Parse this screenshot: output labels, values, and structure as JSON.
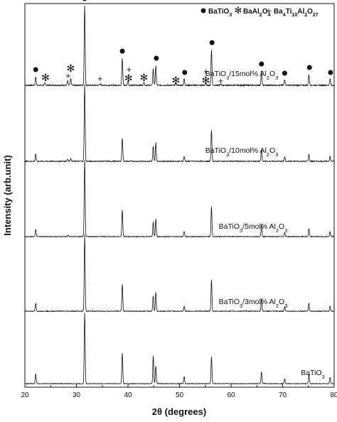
{
  "chart_data": {
    "type": "line",
    "xlabel": "2θ (degrees)",
    "ylabel": "Intensity (arb.unit)",
    "xlim": [
      20,
      80
    ],
    "xticks": [
      20,
      30,
      40,
      50,
      60,
      70,
      80
    ],
    "y_ticks_shown": false,
    "grid": false,
    "legend": {
      "placement": "top-right",
      "entries": [
        {
          "symbol": "filled-circle",
          "label": "BaTiO",
          "sub": "3"
        },
        {
          "symbol": "asterisk",
          "label": "BaAl",
          "sub": "2",
          "label2": "O",
          "sub2": "4"
        },
        {
          "symbol": "plus",
          "label": "Ba",
          "sub": "4",
          "label2": "Ti",
          "sub2": "10",
          "label3": "Al",
          "sub3": "2",
          "label4": "O",
          "sub4": "27"
        }
      ]
    },
    "series": [
      {
        "label_main": "BaTiO",
        "label_sub": "3",
        "label_tail": "/15mol% Al",
        "label_sub2": "2",
        "label_tail2": "O",
        "label_sub3": "3",
        "baseline_level": 0.8,
        "peaks": [
          {
            "x": 22.1,
            "h": 12
          },
          {
            "x": 23.9,
            "h": 3
          },
          {
            "x": 28.3,
            "h": 6
          },
          {
            "x": 28.9,
            "h": 9
          },
          {
            "x": 31.6,
            "h": 112
          },
          {
            "x": 34.6,
            "h": 2
          },
          {
            "x": 38.9,
            "h": 38
          },
          {
            "x": 40.0,
            "h": 5
          },
          {
            "x": 43.1,
            "h": 5
          },
          {
            "x": 44.9,
            "h": 23
          },
          {
            "x": 45.4,
            "h": 27
          },
          {
            "x": 49.3,
            "h": 3
          },
          {
            "x": 50.9,
            "h": 9
          },
          {
            "x": 55.1,
            "h": 4
          },
          {
            "x": 56.2,
            "h": 50
          },
          {
            "x": 58.0,
            "h": 2
          },
          {
            "x": 65.9,
            "h": 20
          },
          {
            "x": 70.4,
            "h": 8
          },
          {
            "x": 75.1,
            "h": 15
          },
          {
            "x": 79.2,
            "h": 9
          }
        ],
        "markers": [
          {
            "symbol": "filled-circle",
            "x": 22.1,
            "h": 22
          },
          {
            "symbol": "asterisk",
            "x": 24.0,
            "h": 10
          },
          {
            "symbol": "plus",
            "x": 28.4,
            "h": 14
          },
          {
            "symbol": "asterisk",
            "x": 28.9,
            "h": 23
          },
          {
            "symbol": "filled-circle",
            "x": 31.6,
            "h": 122
          },
          {
            "symbol": "plus",
            "x": 34.6,
            "h": 10
          },
          {
            "symbol": "filled-circle",
            "x": 38.9,
            "h": 48
          },
          {
            "symbol": "plus",
            "x": 40.2,
            "h": 23
          },
          {
            "symbol": "asterisk",
            "x": 40.1,
            "h": 9
          },
          {
            "symbol": "asterisk",
            "x": 43.1,
            "h": 10
          },
          {
            "symbol": "filled-circle",
            "x": 45.5,
            "h": 38
          },
          {
            "symbol": "asterisk",
            "x": 49.3,
            "h": 6
          },
          {
            "symbol": "filled-circle",
            "x": 51.0,
            "h": 18
          },
          {
            "symbol": "plus",
            "x": 55.1,
            "h": 20
          },
          {
            "symbol": "asterisk",
            "x": 55.1,
            "h": 6
          },
          {
            "symbol": "filled-circle",
            "x": 56.3,
            "h": 60
          },
          {
            "symbol": "plus",
            "x": 58.0,
            "h": 7
          },
          {
            "symbol": "filled-circle",
            "x": 65.9,
            "h": 30
          },
          {
            "symbol": "filled-circle",
            "x": 70.4,
            "h": 17
          },
          {
            "symbol": "filled-circle",
            "x": 75.2,
            "h": 25
          },
          {
            "symbol": "filled-circle",
            "x": 79.3,
            "h": 18
          }
        ]
      },
      {
        "label_main": "BaTiO",
        "label_sub": "3",
        "label_tail": "/10mol% Al",
        "label_sub2": "2",
        "label_tail2": "O",
        "label_sub3": "3",
        "baseline_level": 0.6,
        "peaks": [
          {
            "x": 22.1,
            "h": 10
          },
          {
            "x": 28.3,
            "h": 3
          },
          {
            "x": 28.9,
            "h": 4
          },
          {
            "x": 31.6,
            "h": 108
          },
          {
            "x": 38.9,
            "h": 33
          },
          {
            "x": 44.9,
            "h": 21
          },
          {
            "x": 45.4,
            "h": 26
          },
          {
            "x": 50.9,
            "h": 7
          },
          {
            "x": 56.2,
            "h": 44
          },
          {
            "x": 65.9,
            "h": 17
          },
          {
            "x": 70.4,
            "h": 6
          },
          {
            "x": 75.1,
            "h": 10
          },
          {
            "x": 79.2,
            "h": 7
          }
        ],
        "markers": []
      },
      {
        "label_main": "BaTiO",
        "label_sub": "3",
        "label_tail": "/5mol% Al",
        "label_sub2": "2",
        "label_tail2": "O",
        "label_sub3": "3",
        "baseline_level": 0.5,
        "peaks": [
          {
            "x": 22.1,
            "h": 10
          },
          {
            "x": 28.4,
            "h": 2
          },
          {
            "x": 31.6,
            "h": 108
          },
          {
            "x": 38.9,
            "h": 38
          },
          {
            "x": 44.9,
            "h": 21
          },
          {
            "x": 45.4,
            "h": 25
          },
          {
            "x": 50.9,
            "h": 7
          },
          {
            "x": 56.2,
            "h": 42
          },
          {
            "x": 65.9,
            "h": 17
          },
          {
            "x": 70.4,
            "h": 6
          },
          {
            "x": 75.1,
            "h": 11
          },
          {
            "x": 79.2,
            "h": 7
          }
        ],
        "markers": []
      },
      {
        "label_main": "BaTiO",
        "label_sub": "3",
        "label_tail": "/3mol% Al",
        "label_sub2": "2",
        "label_tail2": "O",
        "label_sub3": "3",
        "baseline_level": 0.5,
        "peaks": [
          {
            "x": 22.1,
            "h": 11
          },
          {
            "x": 31.6,
            "h": 108
          },
          {
            "x": 38.9,
            "h": 38
          },
          {
            "x": 44.9,
            "h": 22
          },
          {
            "x": 45.4,
            "h": 27
          },
          {
            "x": 50.9,
            "h": 7
          },
          {
            "x": 56.2,
            "h": 44
          },
          {
            "x": 65.9,
            "h": 18
          },
          {
            "x": 70.4,
            "h": 6
          },
          {
            "x": 75.1,
            "h": 11
          },
          {
            "x": 79.2,
            "h": 7
          }
        ],
        "markers": []
      },
      {
        "label_main": "BaTiO",
        "label_sub": "3",
        "label_tail": "",
        "label_sub2": "",
        "label_tail2": "",
        "label_sub3": "",
        "baseline_level": 0.4,
        "peaks": [
          {
            "x": 22.1,
            "h": 14
          },
          {
            "x": 31.6,
            "h": 100
          },
          {
            "x": 38.9,
            "h": 43
          },
          {
            "x": 44.9,
            "h": 39
          },
          {
            "x": 45.4,
            "h": 25
          },
          {
            "x": 50.9,
            "h": 10
          },
          {
            "x": 56.2,
            "h": 38
          },
          {
            "x": 65.9,
            "h": 17
          },
          {
            "x": 70.4,
            "h": 7
          },
          {
            "x": 75.1,
            "h": 14
          },
          {
            "x": 79.2,
            "h": 9
          }
        ],
        "markers": []
      }
    ]
  }
}
